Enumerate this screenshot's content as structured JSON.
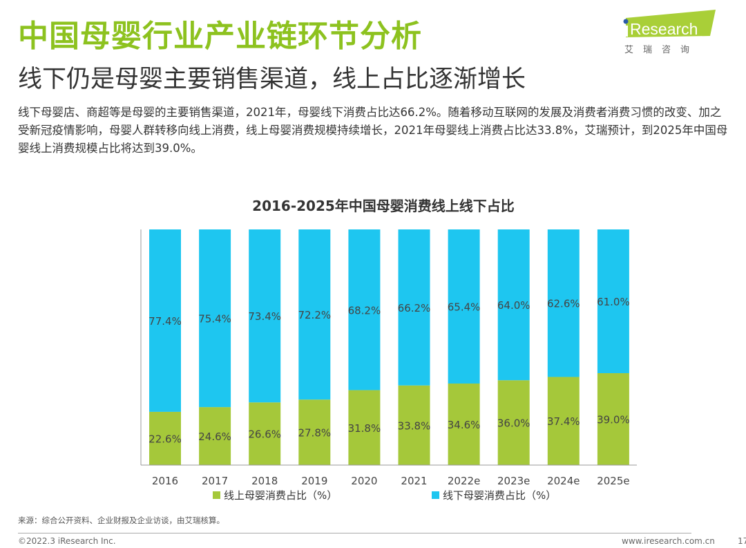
{
  "header": {
    "title": "中国母婴行业产业链环节分析",
    "subtitle": "线下仍是母婴主要销售渠道，线上占比逐渐增长",
    "description": "线下母婴店、商超等是母婴的主要销售渠道，2021年，母婴线下消费占比达66.2%。随着移动互联网的发展及消费者消费习惯的改变、加之受新冠疫情影响，母婴人群转移向线上消费，线上母婴消费规模持续增长，2021年母婴线上消费占比达33.8%，艾瑞预计，到2025年中国母婴线上消费规模占比将达到39.0%。"
  },
  "logo": {
    "brand": "iResearch",
    "cn": "艾 瑞 咨 询",
    "color": "#a9cf38"
  },
  "chart_data": {
    "type": "bar",
    "stacked": true,
    "normalized": true,
    "title": "2016-2025年中国母婴消费线上线下占比",
    "categories": [
      "2016",
      "2017",
      "2018",
      "2019",
      "2020",
      "2021",
      "2022e",
      "2023e",
      "2024e",
      "2025e"
    ],
    "series": [
      {
        "name": "线上母婴消费占比（%）",
        "color": "#a5c83a",
        "values": [
          22.6,
          24.6,
          26.6,
          27.8,
          31.8,
          33.8,
          34.6,
          36.0,
          37.4,
          39.0
        ]
      },
      {
        "name": "线下母婴消费占比（%）",
        "color": "#1ec6f0",
        "values": [
          77.4,
          75.4,
          73.4,
          72.2,
          68.2,
          66.2,
          65.4,
          64.0,
          62.6,
          61.0
        ]
      }
    ],
    "ylim": [
      0,
      100
    ],
    "grid": false,
    "legend": "bottom"
  },
  "footer": {
    "source": "来源：综合公开资料、企业财报及企业访谈，由艾瑞核算。",
    "copyright": "©2022.3 iResearch Inc.",
    "website": "www.iresearch.com.cn",
    "page": "17"
  }
}
